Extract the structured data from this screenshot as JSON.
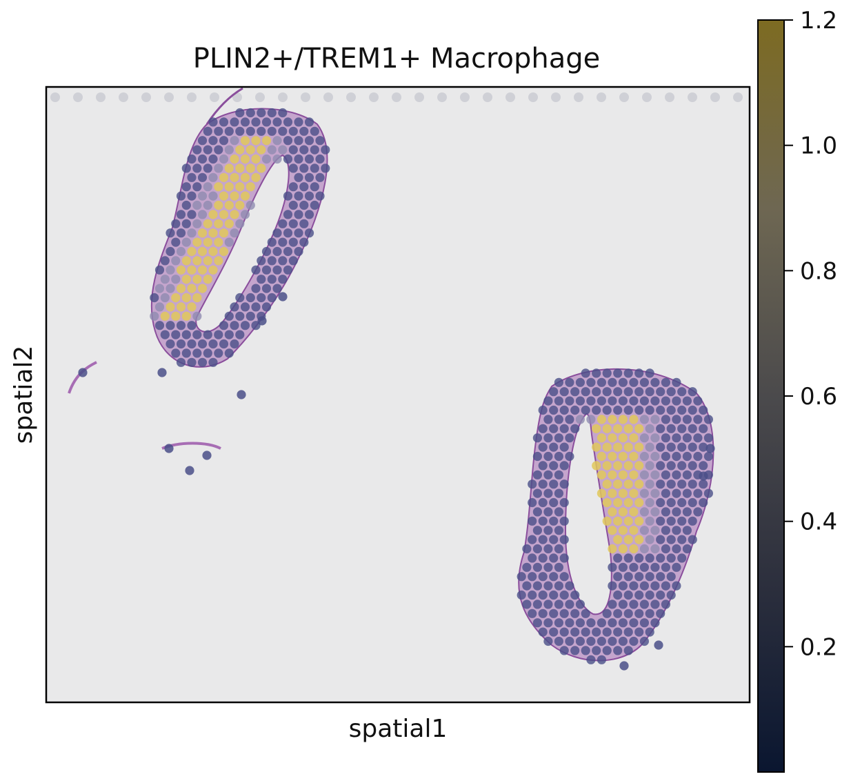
{
  "chart_data": {
    "type": "scatter",
    "title": "PLIN2+/TREM1+ Macrophage",
    "xlabel": "spatial1",
    "ylabel": "spatial2",
    "grid": false,
    "colorbar": {
      "colormap": "cividis",
      "range": [
        0,
        1.2
      ],
      "ticks": [
        0.2,
        0.4,
        0.6,
        0.8,
        1.0,
        1.2
      ],
      "tick_labels": [
        "0.2",
        "0.4",
        "0.6",
        "0.8",
        "1.0",
        "1.2"
      ],
      "colors": [
        "#0a1630",
        "#2a2d3a",
        "#4a4a4f",
        "#6b6858",
        "#8a7a3a",
        "#6e6128"
      ]
    },
    "background_color": "#e9e9ea",
    "tissue_color": "#a76db4",
    "spot_colors": {
      "low": "#4a4f88",
      "mid": "#8f8bb0",
      "high": "#e0c85a"
    },
    "sections": [
      {
        "name": "upper-left",
        "center": [
          0.31,
          0.27
        ],
        "level_peak": 1.1
      },
      {
        "name": "lower-right",
        "center": [
          0.8,
          0.7
        ],
        "level_peak": 1.1
      }
    ]
  }
}
